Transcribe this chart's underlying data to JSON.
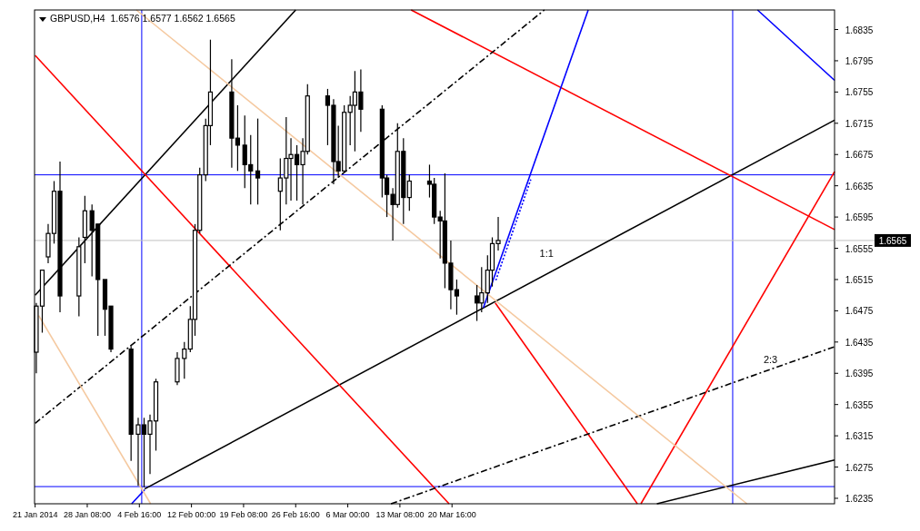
{
  "chart_data": {
    "type": "candlestick",
    "title": "GBPUSD,H4  1.6576 1.6577 1.6562 1.6565",
    "color": "#000000",
    "x": [
      "2014-01-21T04:00",
      "2014-01-22T00:00",
      "2014-01-22T20:00",
      "2014-01-23T16:00",
      "2014-01-24T12:00",
      "2014-01-27T04:00",
      "2014-01-28T00:00",
      "2014-01-29T00:00",
      "2014-01-29T20:00",
      "2014-01-30T20:00",
      "2014-01-31T16:00",
      "2014-02-03T12:00",
      "2014-02-04T12:00",
      "2014-02-05T08:00",
      "2014-02-06T04:00",
      "2014-02-07T00:00",
      "2014-02-10T00:00",
      "2014-02-11T00:00",
      "2014-02-11T20:00",
      "2014-02-12T12:00",
      "2014-02-13T04:00",
      "2014-02-14T00:00",
      "2014-02-14T16:00",
      "2014-02-17T16:00",
      "2014-02-18T12:00",
      "2014-02-19T12:00",
      "2014-02-20T08:00",
      "2014-02-21T08:00",
      "2014-02-24T12:00",
      "2014-02-25T08:00",
      "2014-02-26T00:00",
      "2014-02-26T20:00",
      "2014-02-27T16:00",
      "2014-02-28T08:00",
      "2014-03-03T04:00",
      "2014-03-04T00:00",
      "2014-03-04T16:00",
      "2014-03-05T12:00",
      "2014-03-06T08:00",
      "2014-03-07T00:00",
      "2014-03-07T20:00",
      "2014-03-10T20:00",
      "2014-03-11T12:00",
      "2014-03-12T08:00",
      "2014-03-13T00:00",
      "2014-03-13T20:00",
      "2014-03-14T16:00",
      "2014-03-17T12:00",
      "2014-03-18T04:00",
      "2014-03-19T00:00",
      "2014-03-19T16:00",
      "2014-03-20T12:00",
      "2014-03-21T08:00",
      "2014-03-24T04:00",
      "2014-03-24T20:00",
      "2014-03-25T16:00",
      "2014-03-26T08:00",
      "2014-03-27T04:00"
    ],
    "ohlc": [
      [
        1.6422,
        1.6485,
        1.6395,
        1.6481
      ],
      [
        1.6481,
        1.6527,
        1.6447,
        1.6527
      ],
      [
        1.6544,
        1.6586,
        1.6536,
        1.6574
      ],
      [
        1.6574,
        1.6641,
        1.6561,
        1.6628
      ],
      [
        1.6628,
        1.6666,
        1.6473,
        1.6494
      ],
      [
        1.6494,
        1.6569,
        1.6468,
        1.6557
      ],
      [
        1.6569,
        1.6622,
        1.6536,
        1.6603
      ],
      [
        1.6603,
        1.6611,
        1.6519,
        1.6578
      ],
      [
        1.6586,
        1.6586,
        1.6443,
        1.6515
      ],
      [
        1.6515,
        1.6515,
        1.6443,
        1.6477
      ],
      [
        1.6481,
        1.6481,
        1.6422,
        1.6426
      ],
      [
        1.6426,
        1.643,
        1.6283,
        1.6317
      ],
      [
        1.6317,
        1.6338,
        1.6251,
        1.6329
      ],
      [
        1.6329,
        1.6338,
        1.6249,
        1.6317
      ],
      [
        1.6317,
        1.6342,
        1.6266,
        1.6334
      ],
      [
        1.6334,
        1.6388,
        1.6296,
        1.6384
      ],
      [
        1.6384,
        1.6422,
        1.638,
        1.6414
      ],
      [
        1.6414,
        1.6435,
        1.6388,
        1.6426
      ],
      [
        1.6426,
        1.6481,
        1.6422,
        1.6464
      ],
      [
        1.6464,
        1.6586,
        1.6443,
        1.6578
      ],
      [
        1.6578,
        1.6658,
        1.6574,
        1.6649
      ],
      [
        1.6649,
        1.6721,
        1.6641,
        1.6712
      ],
      [
        1.6712,
        1.6822,
        1.6687,
        1.6755
      ],
      [
        1.6755,
        1.6797,
        1.6658,
        1.6696
      ],
      [
        1.6696,
        1.6738,
        1.6654,
        1.6687
      ],
      [
        1.6687,
        1.6725,
        1.6632,
        1.6662
      ],
      [
        1.6662,
        1.67,
        1.6611,
        1.6654
      ],
      [
        1.6654,
        1.6721,
        1.6611,
        1.6645
      ],
      [
        1.6628,
        1.667,
        1.6578,
        1.6645
      ],
      [
        1.6645,
        1.6723,
        1.6611,
        1.667
      ],
      [
        1.667,
        1.6696,
        1.6616,
        1.6675
      ],
      [
        1.6675,
        1.6687,
        1.6616,
        1.6662
      ],
      [
        1.6662,
        1.6696,
        1.6611,
        1.6679
      ],
      [
        1.6679,
        1.6765,
        1.6675,
        1.675
      ],
      [
        1.675,
        1.6759,
        1.6687,
        1.6738
      ],
      [
        1.6738,
        1.6746,
        1.6637,
        1.6666
      ],
      [
        1.6666,
        1.6712,
        1.6645,
        1.6654
      ],
      [
        1.6654,
        1.6738,
        1.6654,
        1.6729
      ],
      [
        1.6729,
        1.675,
        1.6687,
        1.6738
      ],
      [
        1.6738,
        1.6782,
        1.6679,
        1.6755
      ],
      [
        1.6755,
        1.6784,
        1.6704,
        1.6733
      ],
      [
        1.6733,
        1.6738,
        1.662,
        1.6645
      ],
      [
        1.6645,
        1.6649,
        1.6595,
        1.6624
      ],
      [
        1.6624,
        1.6632,
        1.6565,
        1.6611
      ],
      [
        1.6611,
        1.6715,
        1.6607,
        1.6679
      ],
      [
        1.6679,
        1.6696,
        1.6586,
        1.662
      ],
      [
        1.662,
        1.6649,
        1.6603,
        1.6641
      ],
      [
        1.6641,
        1.6662,
        1.662,
        1.6637
      ],
      [
        1.6637,
        1.6645,
        1.6586,
        1.6595
      ],
      [
        1.6595,
        1.6603,
        1.6542,
        1.659
      ],
      [
        1.659,
        1.6651,
        1.6504,
        1.6536
      ],
      [
        1.6536,
        1.6565,
        1.6477,
        1.6502
      ],
      [
        1.6502,
        1.6515,
        1.647,
        1.6494
      ],
      [
        1.6494,
        1.6508,
        1.6462,
        1.6485
      ],
      [
        1.6485,
        1.6531,
        1.6473,
        1.6498
      ],
      [
        1.6498,
        1.6546,
        1.6485,
        1.6527
      ],
      [
        1.6527,
        1.6569,
        1.6506,
        1.6561
      ],
      [
        1.6561,
        1.6595,
        1.6552,
        1.6565
      ]
    ],
    "series": [
      {
        "type": "line",
        "color": "#000000",
        "line_style": "solid",
        "x": [
          "2014-02-05T10:00",
          "2014-05-13T12:00"
        ],
        "values": [
          1.6247,
          1.6719
        ]
      },
      {
        "type": "line",
        "color": "#000000",
        "line_style": "solid",
        "x": [
          "2014-01-21T00:00",
          "2014-02-26T16:00"
        ],
        "values": [
          1.6495,
          1.686
        ]
      },
      {
        "type": "line",
        "color": "#000000",
        "line_style": "solid",
        "x": [
          "2014-04-18T12:00",
          "2014-05-13T12:00"
        ],
        "values": [
          1.6228,
          1.6284
        ]
      },
      {
        "type": "line",
        "color": "#ff0000",
        "line_style": "solid",
        "x": [
          "2014-03-14T22:00",
          "2014-05-13T12:00"
        ],
        "values": [
          1.686,
          1.6579
        ]
      },
      {
        "type": "line",
        "color": "#ff0000",
        "line_style": "solid",
        "x": [
          "2014-01-21T00:00",
          "2014-03-20T06:00"
        ],
        "values": [
          1.6802,
          1.6228
        ]
      },
      {
        "type": "line",
        "color": "#ff0000",
        "line_style": "solid",
        "x": [
          "2014-03-26T18:00",
          "2014-04-15T18:00"
        ],
        "values": [
          1.6485,
          1.6228
        ]
      },
      {
        "type": "line",
        "color": "#ff0000",
        "line_style": "solid",
        "x": [
          "2014-04-16T06:00",
          "2014-05-13T12:00"
        ],
        "values": [
          1.6228,
          1.6653
        ]
      },
      {
        "type": "line",
        "color": "#0000ff",
        "line_style": "solid",
        "x": [
          "2014-03-25T02:00",
          "2014-04-08T20:00"
        ],
        "values": [
          1.6479,
          1.686
        ]
      },
      {
        "type": "line",
        "color": "#0000ff",
        "line_style": "dotted",
        "x": [
          "2014-03-26T20:00",
          "2014-03-31T18:00"
        ],
        "values": [
          1.6514,
          1.6643
        ]
      },
      {
        "type": "line",
        "color": "#0000ff",
        "line_style": "solid",
        "x": [
          "2014-05-02T16:00",
          "2014-05-13T12:00"
        ],
        "values": [
          1.686,
          1.677
        ]
      },
      {
        "type": "line",
        "color": "#0000ff",
        "line_style": "solid",
        "x": [
          "2014-02-03T14:00",
          "2014-02-05T10:00"
        ],
        "values": [
          1.6228,
          1.6246
        ]
      },
      {
        "type": "line",
        "color": "#000000",
        "line_style": "dashed",
        "x": [
          "2014-01-21T00:00",
          "2014-04-02T16:00"
        ],
        "values": [
          1.6331,
          1.686
        ]
      },
      {
        "type": "line",
        "color": "#000000",
        "line_style": "dashed",
        "x": [
          "2014-03-12T02:00",
          "2014-05-13T12:00"
        ],
        "values": [
          1.6228,
          1.6429
        ]
      },
      {
        "type": "line",
        "color": "#f5c9a0",
        "line_style": "solid",
        "x": [
          "2014-02-04T06:00",
          "2014-05-01T04:00"
        ],
        "values": [
          1.686,
          1.6228
        ]
      },
      {
        "type": "line",
        "color": "#f5c9a0",
        "line_style": "solid",
        "x": [
          "2014-01-21T12:00",
          "2014-02-06T06:00"
        ],
        "values": [
          1.6469,
          1.6228
        ]
      }
    ],
    "xlim": [
      "2014-01-20T22:00",
      "2014-05-13T12:00"
    ],
    "xticks": [
      {
        "value": "2014-01-21T00:00",
        "label": "21 Jan 2014"
      },
      {
        "value": "2014-01-28T08:00",
        "label": "28 Jan 08:00"
      },
      {
        "value": "2014-02-04T16:00",
        "label": "4 Feb 16:00"
      },
      {
        "value": "2014-02-12T00:00",
        "label": "12 Feb 00:00"
      },
      {
        "value": "2014-02-19T08:00",
        "label": "19 Feb 08:00"
      },
      {
        "value": "2014-02-26T16:00",
        "label": "26 Feb 16:00"
      },
      {
        "value": "2014-03-06T00:00",
        "label": "6 Mar 00:00"
      },
      {
        "value": "2014-03-13T08:00",
        "label": "13 Mar 08:00"
      },
      {
        "value": "2014-03-20T16:00",
        "label": "20 Mar 16:00"
      }
    ],
    "ylim": [
      1.6228,
      1.686
    ],
    "yticks": [
      1.6235,
      1.6275,
      1.6315,
      1.6355,
      1.6395,
      1.6435,
      1.6475,
      1.6515,
      1.6555,
      1.6595,
      1.6635,
      1.6675,
      1.6715,
      1.6755,
      1.6795,
      1.6835
    ],
    "ref_lines": [
      {
        "axis": "x",
        "value": "2014-02-05T00:00",
        "color": "#0000ff"
      },
      {
        "axis": "x",
        "value": "2014-04-29T04:00",
        "color": "#0000ff"
      },
      {
        "axis": "y",
        "value": 1.6649,
        "color": "#0000ff"
      },
      {
        "axis": "y",
        "value": 1.625,
        "color": "#0000ff"
      },
      {
        "axis": "y",
        "value": 1.6565,
        "color": "#c0c0c0",
        "label": "1.6565"
      }
    ],
    "annotations": [
      "1:1",
      "2:3"
    ]
  }
}
